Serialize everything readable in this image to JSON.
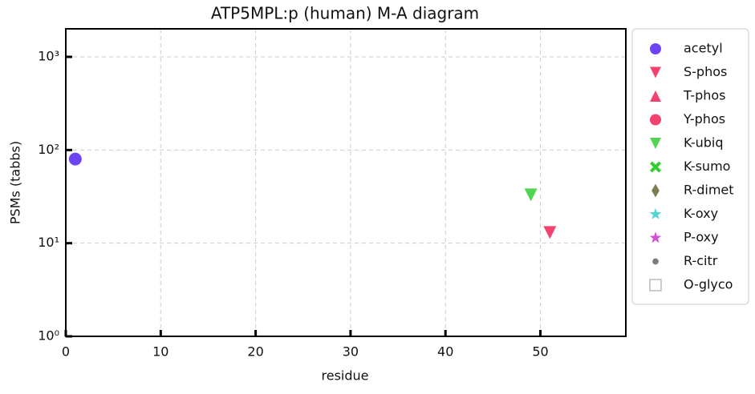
{
  "chart_data": {
    "type": "scatter",
    "title": "ATP5MPL:p (human) M-A diagram",
    "x_label": "residue",
    "y_label": "PSMs (tabbs)",
    "xlim": [
      0,
      59
    ],
    "xticks": [
      0,
      10,
      20,
      30,
      40,
      50
    ],
    "ylim": [
      1,
      2000
    ],
    "y_scale": "log",
    "yticks": [
      {
        "value": 1,
        "label": "10⁰"
      },
      {
        "value": 10,
        "label": "10¹"
      },
      {
        "value": 100,
        "label": "10²"
      },
      {
        "value": 1000,
        "label": "10³"
      }
    ],
    "grid": true,
    "legend": "outside-right",
    "series": [
      {
        "name": "acetyl",
        "color": "#5522ee",
        "marker": "circle",
        "x": [
          1
        ],
        "values": [
          80
        ]
      },
      {
        "name": "S-phos",
        "color": "#ee2255",
        "marker": "triangle-down",
        "x": [
          51
        ],
        "values": [
          13
        ]
      },
      {
        "name": "T-phos",
        "color": "#ee2255",
        "marker": "triangle-up",
        "x": [],
        "values": []
      },
      {
        "name": "Y-phos",
        "color": "#ee2255",
        "marker": "circle",
        "x": [],
        "values": []
      },
      {
        "name": "K-ubiq",
        "color": "#33cc33",
        "marker": "triangle-down",
        "x": [
          49
        ],
        "values": [
          33
        ]
      },
      {
        "name": "K-sumo",
        "color": "#33cc33",
        "marker": "x",
        "x": [],
        "values": []
      },
      {
        "name": "R-dimet",
        "color": "#666633",
        "marker": "diamond",
        "x": [],
        "values": []
      },
      {
        "name": "K-oxy",
        "color": "#33cccc",
        "marker": "star",
        "x": [],
        "values": []
      },
      {
        "name": "P-oxy",
        "color": "#cc33cc",
        "marker": "star",
        "x": [],
        "values": []
      },
      {
        "name": "R-citr",
        "color": "#666666",
        "marker": "small-circle",
        "x": [],
        "values": []
      },
      {
        "name": "O-glyco",
        "color": "#999999",
        "marker": "open-square",
        "x": [],
        "values": []
      }
    ]
  }
}
